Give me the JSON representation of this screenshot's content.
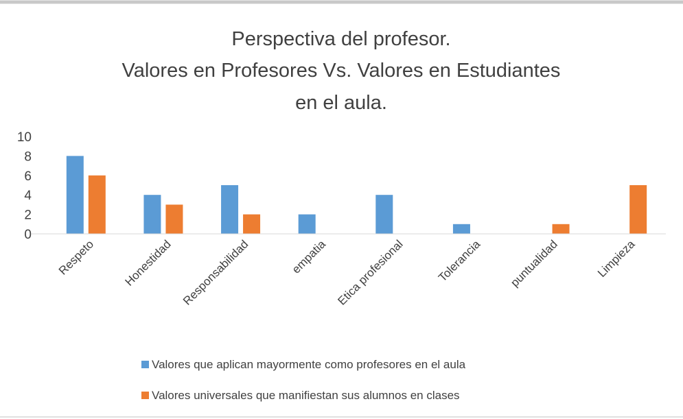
{
  "chart_data": {
    "type": "bar",
    "title": [
      "Perspectiva del profesor.",
      "Valores en Profesores Vs. Valores en Estudiantes",
      "en el aula."
    ],
    "categories": [
      "Respeto",
      "Honestidad",
      "Responsabilidad",
      "empatia",
      "Etica profesional",
      "Tolerancia",
      "puntualidad",
      "Limpieza"
    ],
    "series": [
      {
        "name": "Valores que aplican mayormente como profesores en el aula",
        "color": "#5b9bd5",
        "values": [
          8,
          4,
          5,
          2,
          4,
          1,
          0,
          0
        ]
      },
      {
        "name": "Valores universales que manifiestan sus alumnos en clases",
        "color": "#ed7d31",
        "values": [
          6,
          3,
          2,
          0,
          0,
          0,
          1,
          5
        ]
      }
    ],
    "ylim": [
      0,
      10
    ],
    "yticks": [
      0,
      2,
      4,
      6,
      8,
      10
    ],
    "grid": false
  }
}
